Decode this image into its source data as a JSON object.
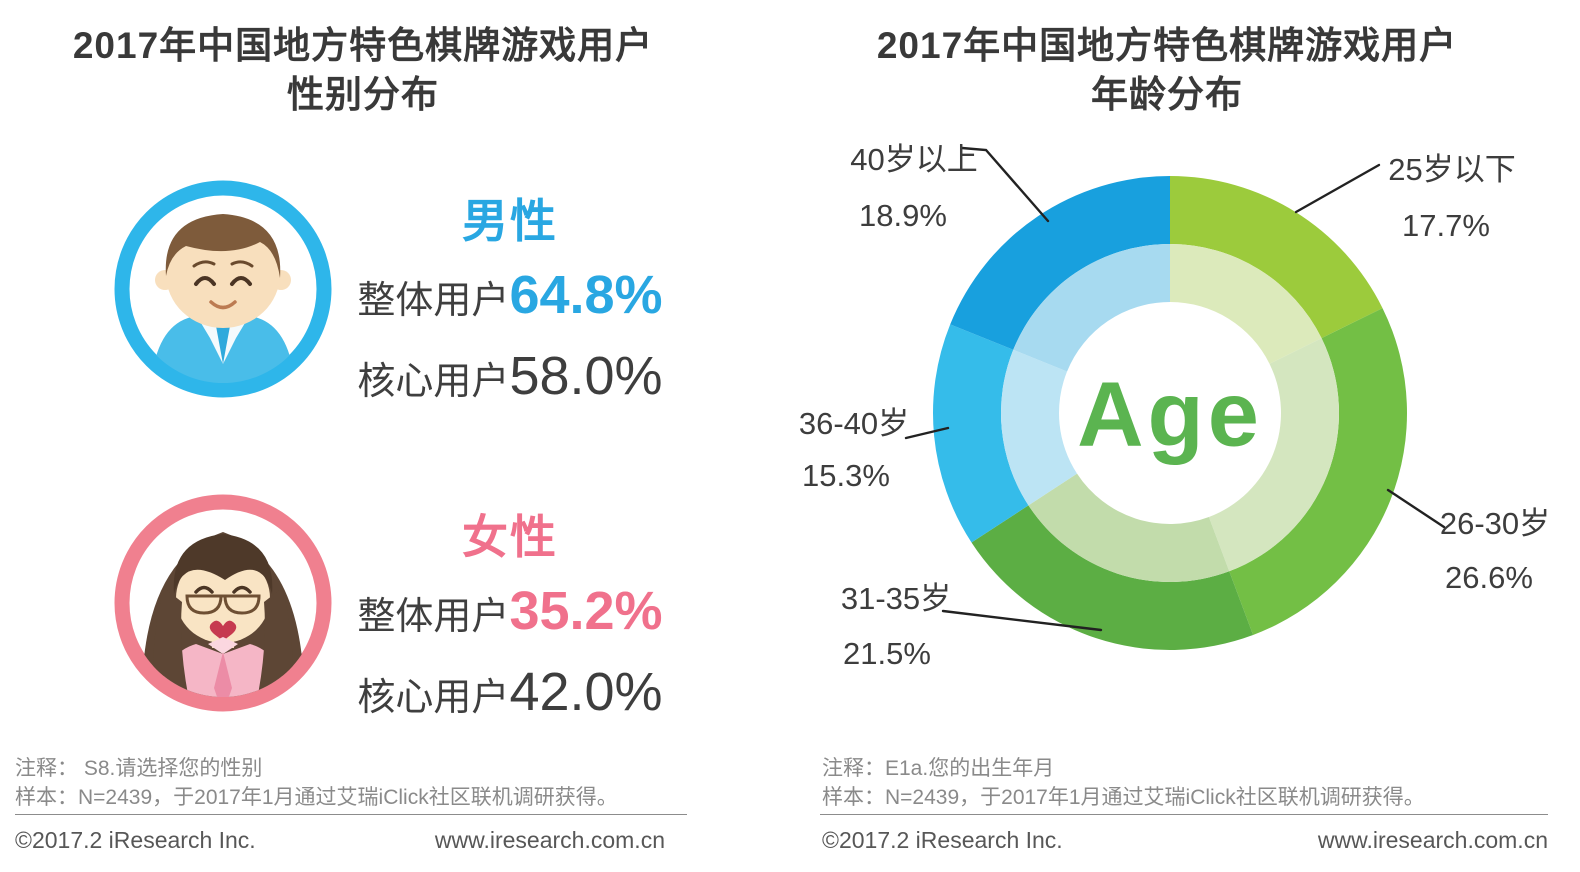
{
  "panels": {
    "gender": {
      "title_line1": "2017年中国地方特色棋牌游戏用户",
      "title_line2": "性别分布",
      "note1": "注释： S8.请选择您的性别",
      "note2": "样本：N=2439，于2017年1月通过艾瑞iClick社区联机调研获得。",
      "copyright": "©2017.2 iResearch Inc.",
      "site": "www.iresearch.com.cn"
    },
    "age": {
      "title_line1": "2017年中国地方特色棋牌游戏用户",
      "title_line2": "年龄分布",
      "note1": "注释：E1a.您的出生年月",
      "note2": "样本：N=2439，于2017年1月通过艾瑞iClick社区联机调研获得。",
      "copyright": "©2017.2 iResearch Inc.",
      "site": "www.iresearch.com.cn"
    }
  },
  "chart_data": [
    {
      "type": "pictogram",
      "title": "2017年中国地方特色棋牌游戏用户性别分布",
      "unit": "%",
      "categories": [
        "男性",
        "女性"
      ],
      "series": [
        {
          "name": "整体用户",
          "values": [
            64.8,
            35.2
          ]
        },
        {
          "name": "核心用户",
          "values": [
            58.0,
            42.0
          ]
        }
      ],
      "groups": [
        {
          "label": "男性",
          "overall_label": "整体用户",
          "overall_pct": "64.8%",
          "core_label": "核心用户",
          "core_pct": "58.0%",
          "accent": "#29a7e2",
          "ring_color": "#2eb6ea"
        },
        {
          "label": "女性",
          "overall_label": "整体用户",
          "overall_pct": "35.2%",
          "core_label": "核心用户",
          "core_pct": "42.0%",
          "accent": "#f0718c",
          "ring_color": "#f0808f"
        }
      ]
    },
    {
      "type": "donut",
      "title": "2017年中国地方特色棋牌游戏用户年龄分布",
      "center_label": "Age",
      "center_label_color": "#5bb450",
      "unit": "%",
      "start_at_deg": 0,
      "clockwise": true,
      "legend_position": "around-callouts",
      "segments": [
        {
          "label": "25岁以下",
          "value": 17.7,
          "color": "#9ccb3c",
          "inner_color": "#dceabb"
        },
        {
          "label": "26-30岁",
          "value": 26.6,
          "color": "#73bf45",
          "inner_color": "#d4e6bf"
        },
        {
          "label": "31-35岁",
          "value": 21.5,
          "color": "#5cae44",
          "inner_color": "#c2dcab"
        },
        {
          "label": "36-40岁",
          "value": 15.3,
          "color": "#35bcea",
          "inner_color": "#bce4f4"
        },
        {
          "label": "40岁以上",
          "value": 18.9,
          "color": "#18a0de",
          "inner_color": "#a7daf0"
        }
      ]
    }
  ]
}
